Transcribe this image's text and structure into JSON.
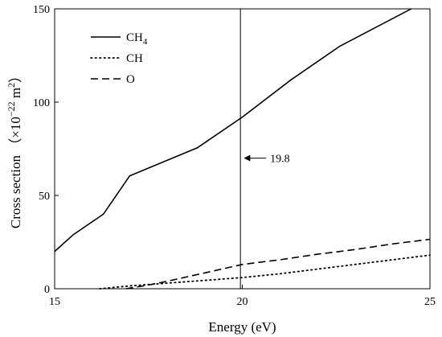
{
  "chart_data": {
    "type": "line",
    "xlabel": "Energy (eV)",
    "ylabel": {
      "prefix": "Cross section （×10",
      "exp1": "−22",
      "mid": " m",
      "exp2": "2",
      "suffix": "）"
    },
    "xlim": [
      15,
      25
    ],
    "ylim": [
      0,
      150
    ],
    "x_ticks": [
      {
        "value": 15,
        "label": "15"
      },
      {
        "value": 20,
        "label": "20"
      },
      {
        "value": 25,
        "label": "25"
      }
    ],
    "y_ticks": [
      {
        "value": 0,
        "label": "0"
      },
      {
        "value": 50,
        "label": "50"
      },
      {
        "value": 100,
        "label": "100"
      },
      {
        "value": 150,
        "label": "150"
      }
    ],
    "grid": false,
    "legend_position": "top-left",
    "series": [
      {
        "name": "CH",
        "name_sub": "4",
        "style": "solid",
        "color": "#000000",
        "points": [
          [
            15.0,
            20
          ],
          [
            15.5,
            29
          ],
          [
            16.3,
            40
          ],
          [
            17.0,
            60.5
          ],
          [
            18.8,
            75.5
          ],
          [
            20.0,
            92
          ],
          [
            21.3,
            112
          ],
          [
            22.6,
            130
          ],
          [
            24.5,
            150
          ]
        ]
      },
      {
        "name": "CH",
        "name_sub": "",
        "style": "dotted",
        "color": "#000000",
        "points": [
          [
            16.2,
            0
          ],
          [
            17.0,
            1.5
          ],
          [
            18.0,
            3
          ],
          [
            19.0,
            4.5
          ],
          [
            20.0,
            6
          ],
          [
            21.0,
            8
          ],
          [
            22.0,
            10.5
          ],
          [
            23.0,
            13
          ],
          [
            24.0,
            15.5
          ],
          [
            25.0,
            18
          ]
        ]
      },
      {
        "name": "O",
        "name_sub": "",
        "style": "dashed",
        "color": "#000000",
        "points": [
          [
            16.9,
            0
          ],
          [
            17.5,
            2
          ],
          [
            18.0,
            4
          ],
          [
            19.0,
            8.5
          ],
          [
            20.0,
            13
          ],
          [
            21.0,
            15.5
          ],
          [
            22.0,
            18.5
          ],
          [
            23.0,
            21
          ],
          [
            24.0,
            24
          ],
          [
            25.0,
            26.5
          ]
        ]
      }
    ],
    "annotations": [
      {
        "type": "vline",
        "x": 19.95
      },
      {
        "type": "arrow-label",
        "text": "19.8",
        "x": 19.8,
        "y": 70
      }
    ]
  }
}
